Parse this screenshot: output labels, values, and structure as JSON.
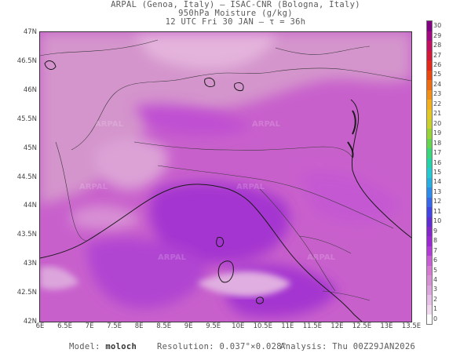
{
  "header": {
    "line1": "ARPAL (Genoa, Italy)  —  ISAC-CNR (Bologna, Italy)",
    "line2": "950hPa Moisture (g/kg)",
    "line3": "12 UTC Fri 30 JAN  —  τ = 36h"
  },
  "map": {
    "lat_labels": [
      "47N",
      "46.5N",
      "46N",
      "45.5N",
      "45N",
      "44.5N",
      "44N",
      "43.5N",
      "43N",
      "42.5N",
      "42N"
    ],
    "lon_labels": [
      "6E",
      "6.5E",
      "7E",
      "7.5E",
      "8E",
      "8.5E",
      "9E",
      "9.5E",
      "10E",
      "10.5E",
      "11E",
      "11.5E",
      "12E",
      "12.5E",
      "13E",
      "13.5E"
    ],
    "lat_range": [
      42,
      47
    ],
    "lon_range": [
      6,
      13.5
    ],
    "watermark": "ARPAL"
  },
  "colorbar": {
    "labels": [
      "0",
      "1",
      "2",
      "3",
      "4",
      "5",
      "6",
      "7",
      "8",
      "9",
      "10",
      "11",
      "12",
      "13",
      "14",
      "15",
      "16",
      "17",
      "18",
      "19",
      "20",
      "21",
      "22",
      "23",
      "24",
      "25",
      "26",
      "27",
      "28",
      "29",
      "30"
    ],
    "colors": [
      "#ffffff",
      "#f0d8ef",
      "#e6c0e6",
      "#dca6dc",
      "#d890d4",
      "#d47ad0",
      "#c85ed4",
      "#b03cd4",
      "#9a2ad0",
      "#8228c8",
      "#5e2ed0",
      "#4444e0",
      "#3a66e8",
      "#2e8ce8",
      "#2aaee0",
      "#28c8d0",
      "#28d2a8",
      "#3cd47c",
      "#66d450",
      "#98d23a",
      "#c8d030",
      "#e0c828",
      "#f0b020",
      "#f09018",
      "#ec6c14",
      "#e84810",
      "#e0281c",
      "#d01838",
      "#c01060",
      "#a00a80",
      "#800080"
    ]
  },
  "footer": {
    "model_label": "Model:",
    "model_name": "moloch",
    "resolution": "Resolution: 0.037°×0.028°",
    "analysis": "Analysis: Thu 00Z29JAN2026"
  }
}
